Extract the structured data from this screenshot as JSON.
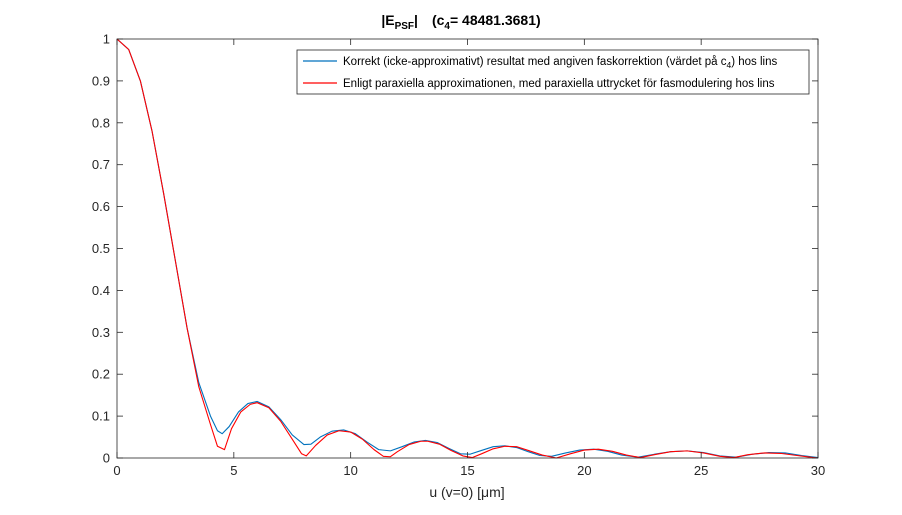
{
  "chart_data": {
    "type": "line",
    "title": {
      "main": "|E",
      "main_sub": "PSF",
      "main_close": "|",
      "param": "(c",
      "param_sub": "4",
      "param_value": "= 48481.3681)"
    },
    "xlabel": "u (v=0) [μm]",
    "ylabel": "",
    "xlim": [
      0,
      30
    ],
    "ylim": [
      0,
      1
    ],
    "x_ticks": [
      "0",
      "5",
      "10",
      "15",
      "20",
      "25",
      "30"
    ],
    "y_ticks": [
      "0",
      "0.1",
      "0.2",
      "0.3",
      "0.4",
      "0.5",
      "0.6",
      "0.7",
      "0.8",
      "0.9",
      "1"
    ],
    "grid": false,
    "legend_position": "top-right",
    "series": [
      {
        "name": "Korrekt (icke-approximativt) resultat med angiven faskorrektion (värdet på c",
        "name_sub": "4",
        "name_tail": ") hos lins",
        "color": "#0072BD",
        "x": [
          0,
          0.5,
          1,
          1.5,
          2,
          2.5,
          3,
          3.5,
          4,
          4.3,
          4.5,
          4.8,
          5.2,
          5.6,
          6,
          6.5,
          7,
          7.5,
          8,
          8.3,
          8.7,
          9.2,
          9.7,
          10.2,
          10.7,
          11.2,
          11.7,
          12.2,
          12.7,
          13.2,
          13.7,
          14.2,
          14.7,
          15.1,
          15.6,
          16.1,
          16.6,
          17.1,
          17.6,
          18.1,
          18.6,
          19.2,
          19.8,
          20.4,
          21,
          21.6,
          22.3,
          23,
          23.7,
          24.4,
          25.1,
          25.8,
          26.5,
          27.2,
          27.9,
          28.6,
          29.3,
          30
        ],
        "y": [
          1.0,
          0.975,
          0.9,
          0.78,
          0.63,
          0.47,
          0.31,
          0.18,
          0.1,
          0.065,
          0.058,
          0.075,
          0.11,
          0.13,
          0.135,
          0.122,
          0.092,
          0.055,
          0.032,
          0.033,
          0.05,
          0.064,
          0.067,
          0.058,
          0.038,
          0.02,
          0.017,
          0.027,
          0.038,
          0.042,
          0.037,
          0.023,
          0.01,
          0.009,
          0.018,
          0.027,
          0.029,
          0.025,
          0.015,
          0.006,
          0.004,
          0.012,
          0.019,
          0.021,
          0.016,
          0.007,
          0.002,
          0.009,
          0.015,
          0.017,
          0.013,
          0.005,
          0.002,
          0.009,
          0.013,
          0.012,
          0.006,
          0.001
        ]
      },
      {
        "name": "Enligt paraxiella approximationen, med paraxiella uttrycket för fasmodulering hos lins",
        "color": "#FF0000",
        "x": [
          0,
          0.5,
          1,
          1.5,
          2,
          2.5,
          3,
          3.5,
          4,
          4.3,
          4.6,
          4.9,
          5.3,
          5.7,
          6,
          6.5,
          7,
          7.5,
          7.9,
          8.1,
          8.5,
          9,
          9.5,
          10,
          10.5,
          11,
          11.4,
          11.7,
          12,
          12.5,
          13,
          13.3,
          13.8,
          14.3,
          14.8,
          15.2,
          15.6,
          16.1,
          16.6,
          17.1,
          17.6,
          18.2,
          18.8,
          19.4,
          20,
          20.6,
          21.2,
          21.8,
          22.4,
          23,
          23.7,
          24.4,
          25.1,
          25.8,
          26.4,
          27,
          27.7,
          28.4,
          29.1,
          29.8,
          30
        ],
        "y": [
          1.0,
          0.975,
          0.9,
          0.78,
          0.63,
          0.47,
          0.31,
          0.17,
          0.08,
          0.028,
          0.02,
          0.07,
          0.11,
          0.128,
          0.132,
          0.12,
          0.088,
          0.045,
          0.01,
          0.005,
          0.03,
          0.055,
          0.065,
          0.062,
          0.045,
          0.02,
          0.004,
          0.003,
          0.015,
          0.032,
          0.04,
          0.04,
          0.033,
          0.018,
          0.005,
          0.001,
          0.01,
          0.022,
          0.028,
          0.027,
          0.018,
          0.007,
          0.0,
          0.01,
          0.019,
          0.021,
          0.016,
          0.007,
          0.001,
          0.008,
          0.015,
          0.017,
          0.012,
          0.004,
          0.001,
          0.008,
          0.012,
          0.011,
          0.006,
          0.001,
          0.0
        ]
      }
    ]
  }
}
